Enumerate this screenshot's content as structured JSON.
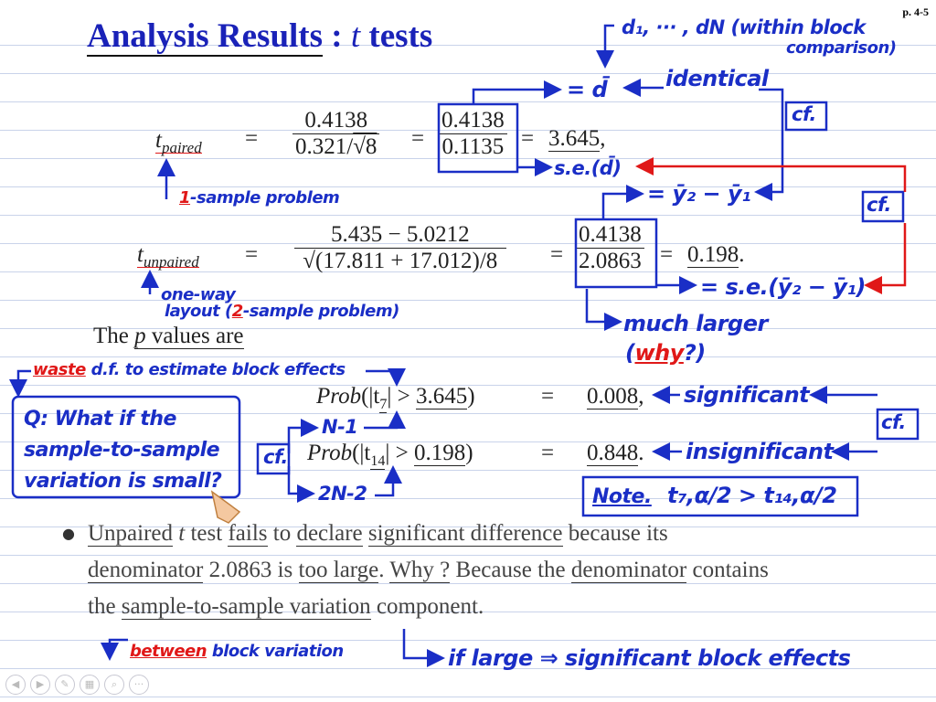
{
  "header": {
    "title_main": "Analysis Results",
    "title_sep": ":",
    "title_t": "t",
    "title_tests": "tests",
    "page_number": "p. 4-5"
  },
  "paired": {
    "lhs_t": "t",
    "lhs_sub": "paired",
    "eq": "=",
    "num1": "0.4138",
    "den1_a": "0.321/",
    "den1_sqrt": "√8",
    "num2": "0.4138",
    "den2": "0.1135",
    "result": "3.645",
    "result_suffix": ","
  },
  "unpaired": {
    "lhs_t": "t",
    "lhs_sub": "unpaired",
    "eq": "=",
    "num1": "5.435 − 5.0212",
    "den1": "√(17.811 + 17.012)/8",
    "num2": "0.4138",
    "den2": "2.0863",
    "result": "0.198",
    "result_suffix": "."
  },
  "pvalues": {
    "intro_pre": "The",
    "intro_p": "p",
    "intro_post": "values are",
    "row1": {
      "prob": "Prob",
      "open": "(|t",
      "sub": "7",
      "gt": "| >",
      "val": "3.645",
      "close": ")",
      "eq": "=",
      "result": "0.008",
      "suffix": ","
    },
    "row2": {
      "prob": "Prob",
      "open": "(|t",
      "sub": "14",
      "gt": "| >",
      "val": "0.198",
      "close": ")",
      "eq": "=",
      "result": "0.848",
      "suffix": "."
    }
  },
  "bullet": {
    "line1": [
      "Unpaired",
      " ",
      "t",
      " test ",
      "fails",
      " to ",
      "declare",
      " ",
      "significant difference",
      " because its"
    ],
    "line2": [
      "denominator",
      " 2.0863 is ",
      "too large",
      ". ",
      "Why ?",
      " Because the ",
      "denominator",
      " contains"
    ],
    "line3": [
      "the ",
      "sample-to-sample variation",
      " component."
    ]
  },
  "annotations": {
    "d_list": "d₁, ··· , dN (within block",
    "d_list_2": "comparison)",
    "dbar": "= d̄",
    "identical": "identical",
    "cf1": "cf.",
    "se_dbar": "s.e.(d̄)",
    "y2_y1": "= ȳ₂ − ȳ₁",
    "cf2": "cf.",
    "one_sample_pre": "1",
    "one_sample_post": "-sample problem",
    "se_y": "= s.e.(ȳ₂ − ȳ₁)",
    "oneway_1": "one-way",
    "oneway_2_pre": "layout (",
    "oneway_2_num": "2",
    "oneway_2_post": "-sample problem)",
    "much_larger": "much larger",
    "why_pre": "(",
    "why_word": "why",
    "why_post": "?)",
    "waste_word": "waste",
    "waste_rest": " d.f. to estimate block effects",
    "question_1": "Q: What if the",
    "question_2": "sample-to-sample",
    "question_3": "variation is small?",
    "n_minus_1": "N-1",
    "cf3": "cf.",
    "two_n_minus_2": "2N-2",
    "significant": "significant",
    "insignificant": "insignificant",
    "cf4": "cf.",
    "note_label": "Note.",
    "note_expr": "t₇,α/2 > t₁₄,α/2",
    "between_word": "between",
    "between_rest": " block variation",
    "if_large": "if large ⇒ significant block effects"
  },
  "nav": {
    "icons": [
      "prev-icon",
      "next-icon",
      "pen-icon",
      "page-icon",
      "zoom-icon",
      "more-icon"
    ],
    "glyphs": [
      "◀",
      "▶",
      "✎",
      "▦",
      "⌕",
      "···"
    ]
  },
  "colors": {
    "title": "#1a22b8",
    "ink_blue": "#1a2ec6",
    "ink_red": "#e01818",
    "text": "#222222"
  }
}
